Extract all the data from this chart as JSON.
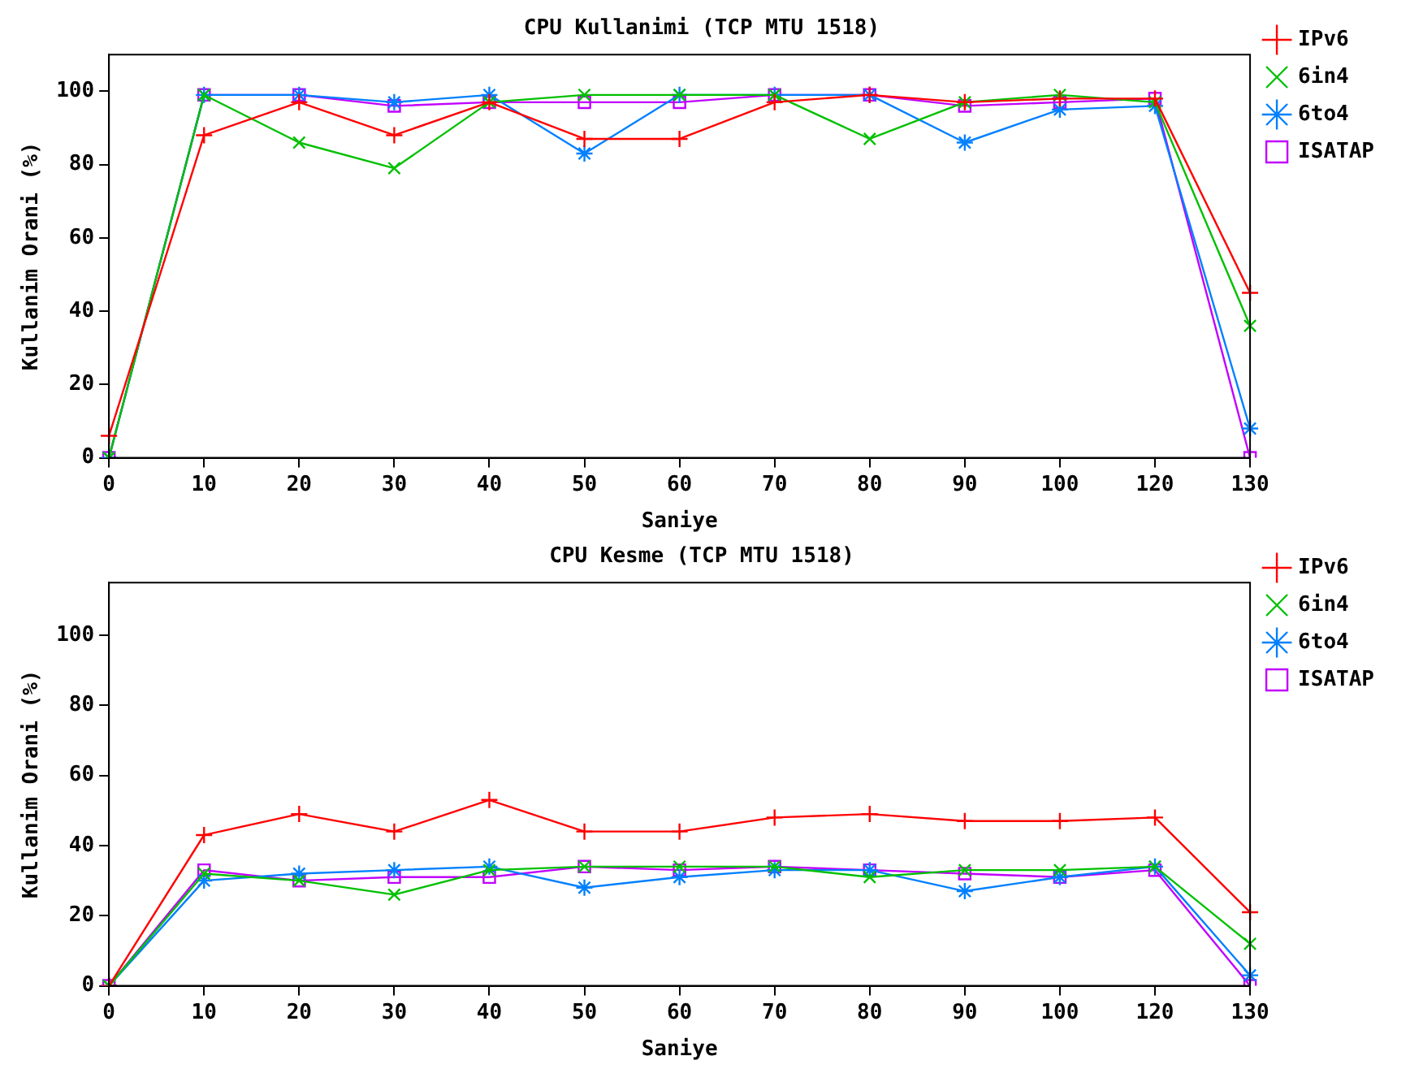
{
  "chart_data": [
    {
      "type": "line",
      "title": "CPU Kullanimi (TCP MTU 1518)",
      "xlabel": "Saniye",
      "ylabel": "Kullanim Orani (%)",
      "categories": [
        "0",
        "10",
        "20",
        "30",
        "40",
        "50",
        "60",
        "70",
        "80",
        "90",
        "100",
        "120",
        "130"
      ],
      "series": [
        {
          "name": "IPv6",
          "color": "#ff0000",
          "marker": "cross",
          "values": [
            6,
            88,
            97,
            88,
            97,
            87,
            87,
            97,
            99,
            97,
            98,
            98,
            45
          ]
        },
        {
          "name": "6in4",
          "color": "#00c000",
          "marker": "cross",
          "values": [
            0,
            99,
            86,
            79,
            97,
            99,
            99,
            99,
            87,
            97,
            99,
            97,
            36
          ]
        },
        {
          "name": "6to4",
          "color": "#0080ff",
          "marker": "cross",
          "values": [
            0,
            99,
            99,
            97,
            99,
            83,
            99,
            99,
            99,
            86,
            95,
            96,
            8
          ]
        },
        {
          "name": "ISATAP",
          "color": "#c000ff",
          "marker": "square",
          "values": [
            0,
            99,
            99,
            96,
            97,
            97,
            97,
            99,
            99,
            96,
            97,
            98,
            0
          ]
        }
      ],
      "ylim": [
        0,
        110
      ],
      "yticks": [
        0,
        20,
        40,
        60,
        80,
        100
      ],
      "grid": false,
      "legend": "top right",
      "line_style": "solid"
    },
    {
      "type": "line",
      "title": "CPU Kesme (TCP MTU 1518)",
      "xlabel": "Saniye",
      "ylabel": "Kullanim Orani (%)",
      "categories": [
        "0",
        "10",
        "20",
        "30",
        "40",
        "50",
        "60",
        "70",
        "80",
        "90",
        "100",
        "120",
        "130"
      ],
      "series": [
        {
          "name": "IPv6",
          "color": "#ff0000",
          "marker": "cross",
          "values": [
            0,
            43,
            49,
            44,
            53,
            44,
            44,
            48,
            49,
            47,
            47,
            48,
            21
          ]
        },
        {
          "name": "6in4",
          "color": "#00c000",
          "marker": "cross",
          "values": [
            0,
            32,
            30,
            26,
            33,
            34,
            34,
            34,
            31,
            33,
            33,
            34,
            12
          ]
        },
        {
          "name": "6to4",
          "color": "#0080ff",
          "marker": "cross",
          "values": [
            0,
            30,
            32,
            33,
            34,
            28,
            31,
            33,
            33,
            27,
            31,
            34,
            3
          ]
        },
        {
          "name": "ISATAP",
          "color": "#c000ff",
          "marker": "square",
          "values": [
            0,
            33,
            30,
            31,
            31,
            34,
            33,
            34,
            33,
            32,
            31,
            33,
            0
          ]
        }
      ],
      "ylim": [
        0,
        115
      ],
      "yticks": [
        0,
        20,
        40,
        60,
        80,
        100
      ],
      "grid": false,
      "legend": "top right",
      "line_style": "solid"
    }
  ]
}
